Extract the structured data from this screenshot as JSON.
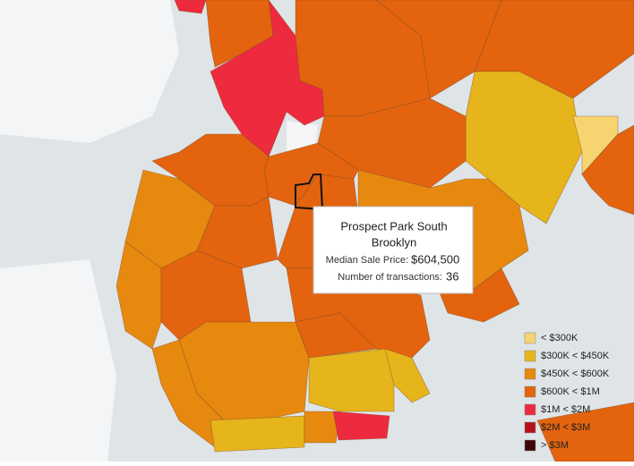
{
  "tooltip": {
    "neighborhood": "Prospect Park South",
    "borough": "Brooklyn",
    "price_label": "Median Sale Price:",
    "price": "$604,500",
    "transactions_label": "Number of transactions:",
    "transactions": "36"
  },
  "legend": [
    {
      "label": "< $300K",
      "color": "#f6d46f"
    },
    {
      "label": "$300K < $450K",
      "color": "#e6b41b"
    },
    {
      "label": "$450K < $600K",
      "color": "#e7890f"
    },
    {
      "label": "$600K < $1M",
      "color": "#e3630f"
    },
    {
      "label": "$1M < $2M",
      "color": "#ee2a3f"
    },
    {
      "label": "$2M < $3M",
      "color": "#b50f1c"
    },
    {
      "label": "> $3M",
      "color": "#3f0707"
    }
  ]
}
